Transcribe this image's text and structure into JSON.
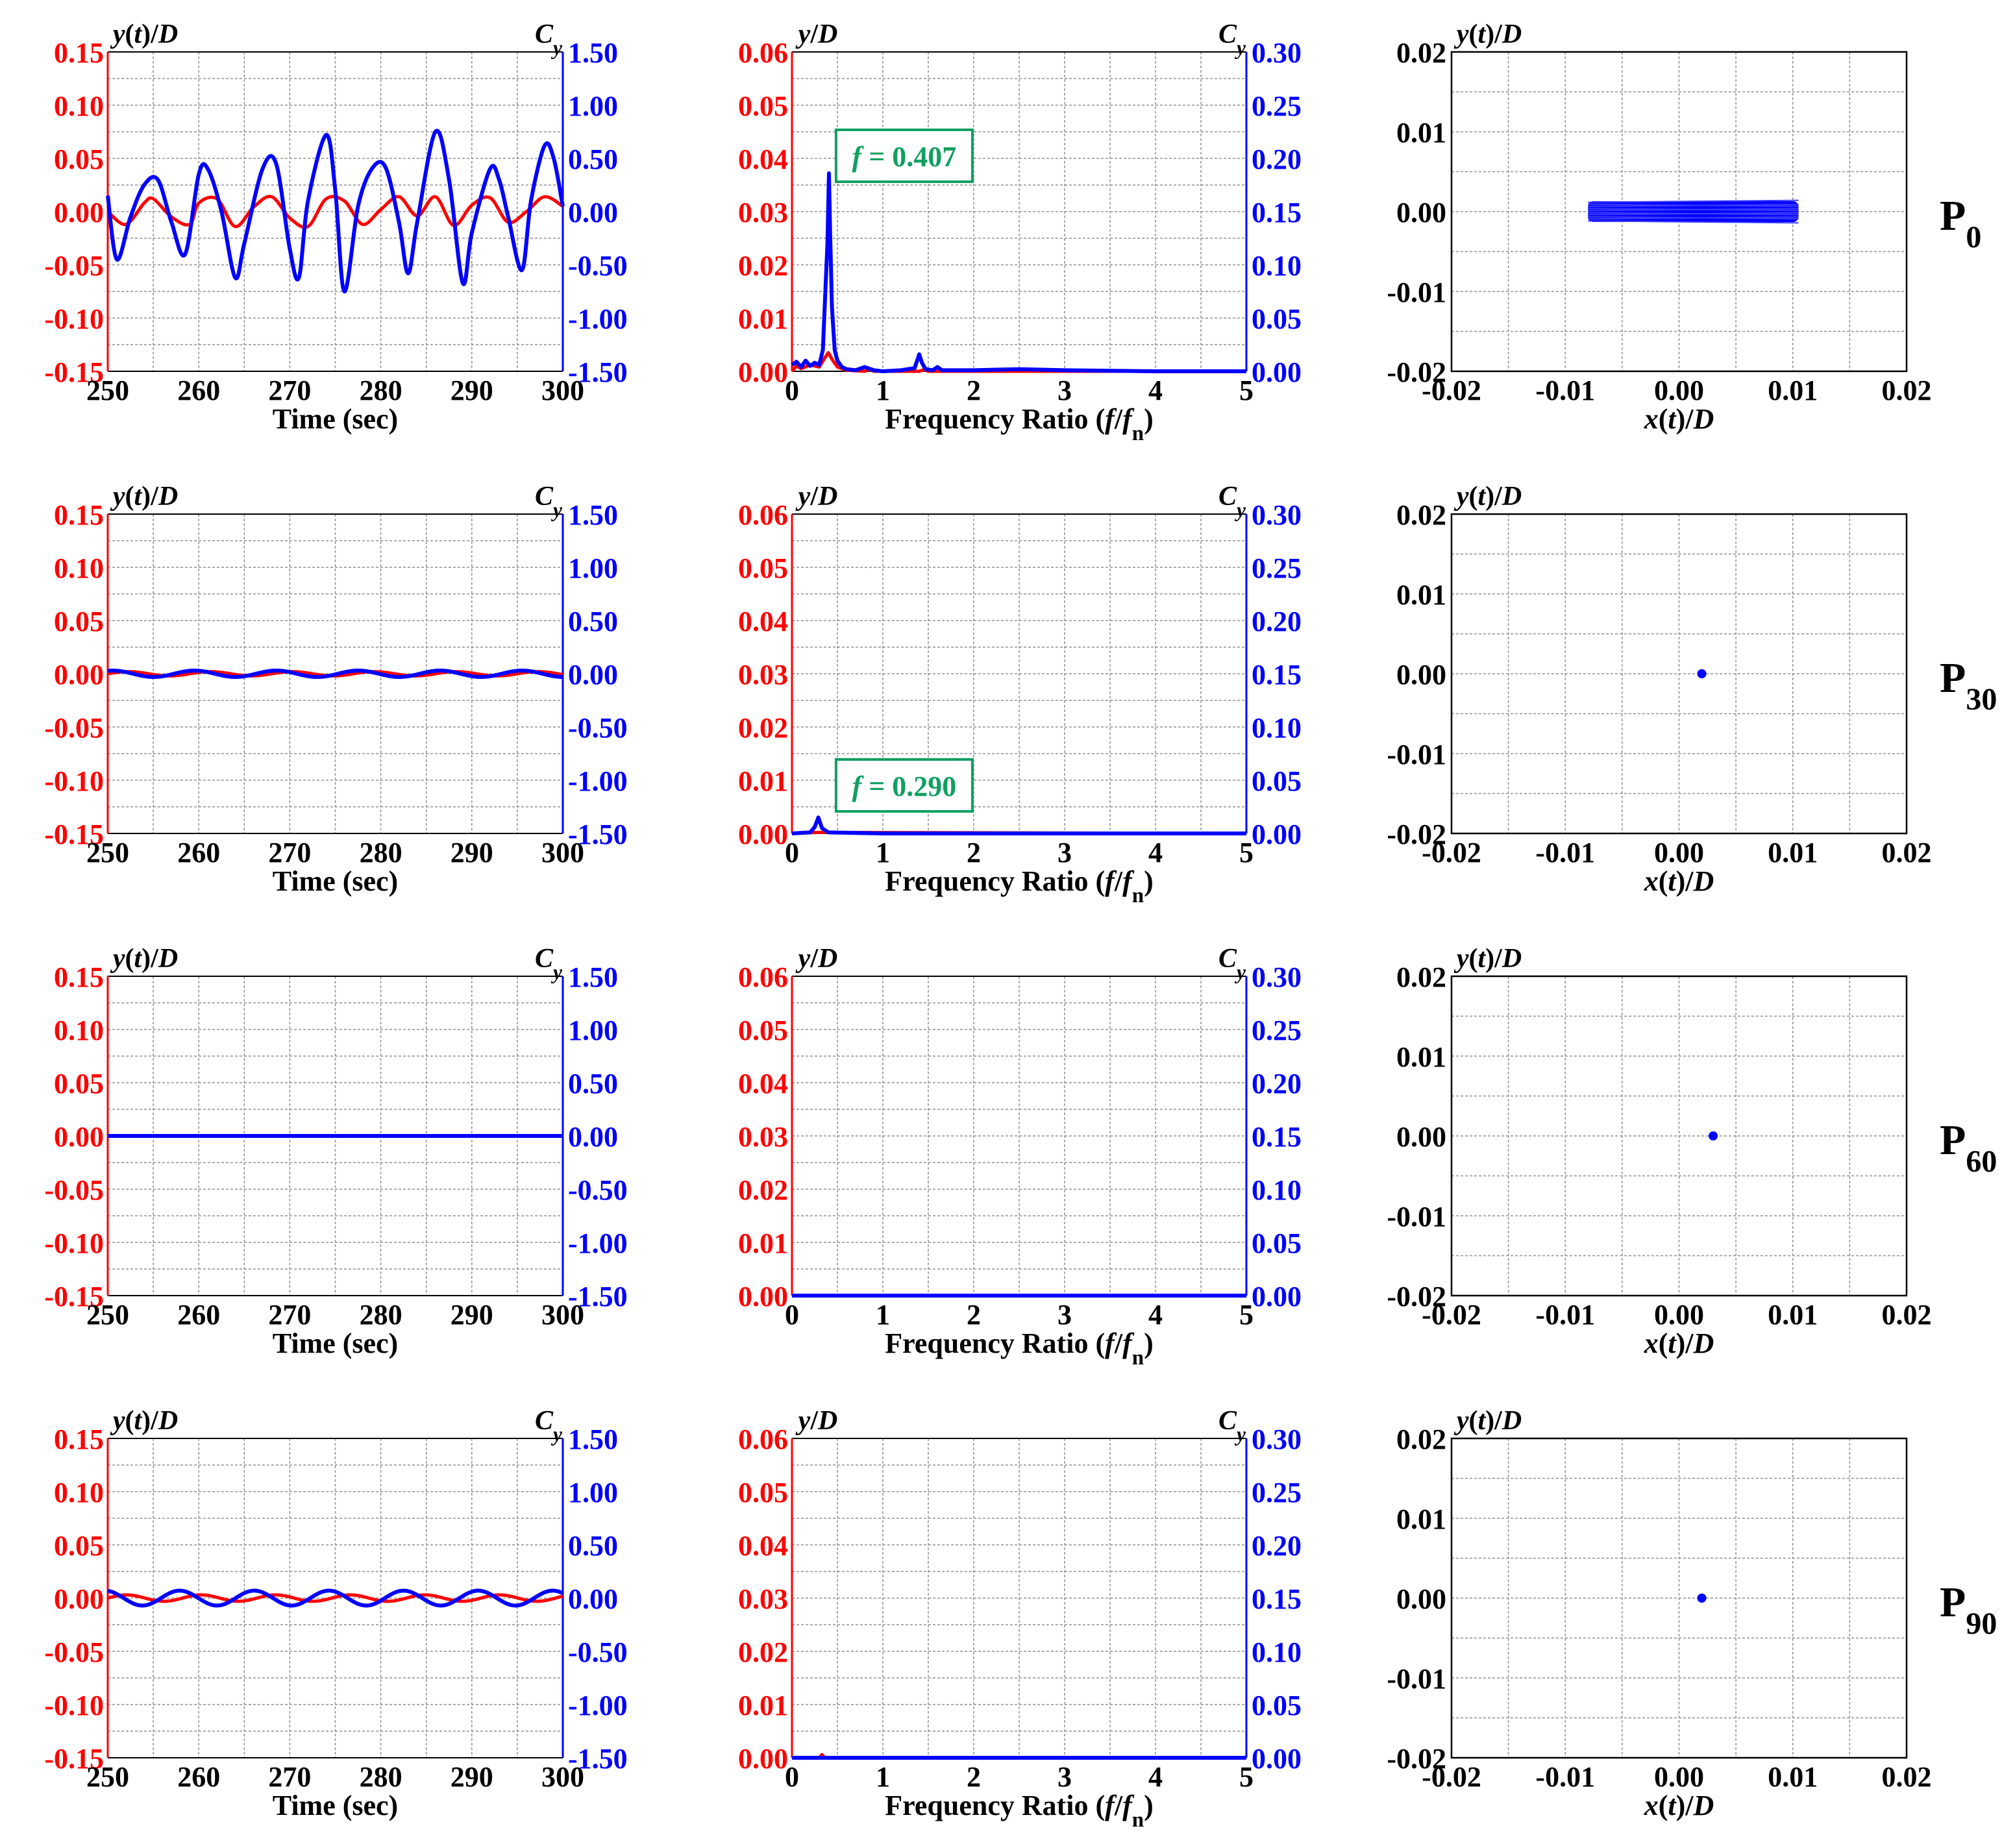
{
  "colors": {
    "left_axis": "#ff0000",
    "right_axis": "#0000ff",
    "grid": "#909090",
    "annotation": "#10a060",
    "frame": "#000000"
  },
  "common": {
    "time_xlabel": "Time (sec)",
    "freq_xlabel": "Frequency Ratio (f/fn)",
    "orbit_xlabel": "x(t)/D",
    "time_left_title": "y(t)/D",
    "time_right_title": "Cy",
    "freq_left_title": "y/D",
    "freq_right_title": "Cy",
    "orbit_ylabel": "y(t)/D",
    "time_xticks": [
      "250",
      "260",
      "270",
      "280",
      "290",
      "300"
    ],
    "time_left_ticks": [
      "0.15",
      "0.10",
      "0.05",
      "0.00",
      "-0.05",
      "-0.10",
      "-0.15"
    ],
    "time_right_ticks": [
      "1.50",
      "1.00",
      "0.50",
      "0.00",
      "-0.50",
      "-1.00",
      "-1.50"
    ],
    "freq_xticks": [
      "0",
      "1",
      "2",
      "3",
      "4",
      "5"
    ],
    "freq_left_ticks": [
      "0.06",
      "0.05",
      "0.04",
      "0.03",
      "0.02",
      "0.01",
      "0.00"
    ],
    "freq_right_ticks": [
      "0.30",
      "0.25",
      "0.20",
      "0.15",
      "0.10",
      "0.05",
      "0.00"
    ],
    "orbit_xticks": [
      "-0.02",
      "-0.01",
      "0.00",
      "0.01",
      "0.02"
    ],
    "orbit_yticks": [
      "0.02",
      "0.01",
      "0.00",
      "-0.01",
      "-0.02"
    ]
  },
  "rows": [
    {
      "label_main": "P",
      "label_sub": "0"
    },
    {
      "label_main": "P",
      "label_sub": "30"
    },
    {
      "label_main": "P",
      "label_sub": "60"
    },
    {
      "label_main": "P",
      "label_sub": "90"
    }
  ],
  "chart_data": [
    {
      "type": "line",
      "row": 0,
      "xlabel": "Time (sec)",
      "xlim": [
        250,
        300
      ],
      "ylim_left": [
        -0.15,
        0.15
      ],
      "ylim_right": [
        -1.5,
        1.5
      ],
      "grid": true,
      "series": [
        {
          "name": "y(t)/D",
          "axis": "left",
          "color": "#ff0000",
          "x": [
            250,
            252,
            254,
            255,
            257,
            259,
            260,
            262,
            264,
            266,
            268,
            270,
            272,
            274,
            276,
            278,
            280,
            282,
            284,
            286,
            288,
            290,
            292,
            294,
            296,
            298,
            300
          ],
          "y": [
            0.0,
            -0.012,
            0.008,
            0.012,
            -0.005,
            -0.012,
            0.008,
            0.012,
            -0.014,
            0.004,
            0.014,
            -0.006,
            -0.014,
            0.012,
            0.01,
            -0.012,
            0.002,
            0.014,
            -0.004,
            0.014,
            -0.013,
            0.006,
            0.013,
            -0.01,
            0.0,
            0.014,
            0.005
          ]
        },
        {
          "name": "Cy",
          "axis": "right",
          "color": "#0000ff",
          "x": [
            250,
            251,
            252.5,
            254,
            255.5,
            257,
            258.5,
            260,
            261,
            262.5,
            264,
            265,
            267,
            268.5,
            270,
            271,
            272,
            274,
            275,
            276,
            277.5,
            279,
            280.5,
            282,
            283,
            284,
            286,
            287.5,
            289,
            290,
            292,
            293,
            294,
            295.5,
            296.5,
            298,
            299,
            300
          ],
          "y": [
            0.15,
            -0.45,
            -0.05,
            0.25,
            0.3,
            -0.1,
            -0.4,
            0.35,
            0.4,
            0.0,
            -0.62,
            -0.3,
            0.4,
            0.45,
            -0.35,
            -0.62,
            0.1,
            0.72,
            0.2,
            -0.75,
            0.05,
            0.4,
            0.42,
            -0.1,
            -0.58,
            -0.1,
            0.75,
            0.3,
            -0.67,
            -0.2,
            0.4,
            0.3,
            -0.05,
            -0.55,
            0.1,
            0.62,
            0.5,
            0.05
          ]
        }
      ]
    },
    {
      "type": "line",
      "row": 0,
      "xlabel": "Frequency Ratio (f/fn)",
      "xlim": [
        0,
        5
      ],
      "ylim_left": [
        0,
        0.06
      ],
      "ylim_right": [
        0,
        0.3
      ],
      "grid": true,
      "annotation": "f = 0.407",
      "series": [
        {
          "name": "y/D",
          "axis": "left",
          "color": "#ff0000",
          "x": [
            0,
            0.05,
            0.1,
            0.2,
            0.3,
            0.35,
            0.4,
            0.45,
            0.5,
            0.6,
            0.8,
            0.85,
            0.9,
            1.0,
            1.2,
            1.4,
            1.45,
            1.5,
            2.0,
            3.0,
            5.0
          ],
          "y": [
            0.0,
            0.001,
            0.0005,
            0.0012,
            0.0008,
            0.0022,
            0.0035,
            0.002,
            0.0008,
            0.0002,
            0.0,
            0.0004,
            0.0,
            0.0,
            0.0,
            0.0,
            0.0003,
            0.0,
            0.0,
            0.0,
            0.0
          ]
        },
        {
          "name": "Cy",
          "axis": "right",
          "color": "#0000ff",
          "x": [
            0,
            0.05,
            0.1,
            0.15,
            0.2,
            0.25,
            0.3,
            0.34,
            0.37,
            0.39,
            0.407,
            0.42,
            0.44,
            0.47,
            0.5,
            0.55,
            0.6,
            0.7,
            0.8,
            0.9,
            1.0,
            1.2,
            1.35,
            1.4,
            1.43,
            1.47,
            1.55,
            1.6,
            1.65,
            2.0,
            2.5,
            3.0,
            4.0,
            5.0
          ],
          "y": [
            0.006,
            0.009,
            0.004,
            0.01,
            0.005,
            0.008,
            0.006,
            0.02,
            0.08,
            0.12,
            0.186,
            0.13,
            0.06,
            0.02,
            0.01,
            0.004,
            0.002,
            0.001,
            0.004,
            0.001,
            0.0,
            0.001,
            0.003,
            0.016,
            0.008,
            0.002,
            0.001,
            0.004,
            0.001,
            0.001,
            0.002,
            0.001,
            0.0,
            0.0
          ]
        }
      ]
    },
    {
      "type": "scatter",
      "row": 0,
      "xlabel": "x(t)/D",
      "ylabel": "y(t)/D",
      "xlim": [
        -0.02,
        0.02
      ],
      "ylim": [
        -0.02,
        0.02
      ],
      "grid": true,
      "orbit": {
        "xmin": -0.008,
        "xmax": 0.0105,
        "ymin": -0.0013,
        "ymax": 0.0013,
        "color": "#0000ff"
      }
    },
    {
      "type": "line",
      "row": 1,
      "xlabel": "Time (sec)",
      "xlim": [
        250,
        300
      ],
      "ylim_left": [
        -0.15,
        0.15
      ],
      "ylim_right": [
        -1.5,
        1.5
      ],
      "grid": true,
      "series": [
        {
          "name": "y(t)/D",
          "axis": "left",
          "color": "#ff0000",
          "sine": {
            "amp": 0.002,
            "period": 9.0,
            "phase": 0.0
          }
        },
        {
          "name": "Cy",
          "axis": "right",
          "color": "#0000ff",
          "sine": {
            "amp": 0.03,
            "period": 9.0,
            "phase": 1.2
          }
        }
      ]
    },
    {
      "type": "line",
      "row": 1,
      "xlabel": "Frequency Ratio (f/fn)",
      "xlim": [
        0,
        5
      ],
      "ylim_left": [
        0,
        0.06
      ],
      "ylim_right": [
        0,
        0.3
      ],
      "grid": true,
      "annotation": "f = 0.290",
      "series": [
        {
          "name": "y/D",
          "axis": "left",
          "color": "#ff0000",
          "x": [
            0,
            0.29,
            5.0
          ],
          "y": [
            0.0,
            0.0002,
            0.0
          ]
        },
        {
          "name": "Cy",
          "axis": "right",
          "color": "#0000ff",
          "x": [
            0,
            0.2,
            0.25,
            0.29,
            0.33,
            0.4,
            1.0,
            2.0,
            5.0
          ],
          "y": [
            0.0,
            0.001,
            0.006,
            0.015,
            0.005,
            0.001,
            0.0,
            0.0,
            0.0
          ]
        }
      ]
    },
    {
      "type": "scatter",
      "row": 1,
      "xlabel": "x(t)/D",
      "ylabel": "y(t)/D",
      "xlim": [
        -0.02,
        0.02
      ],
      "ylim": [
        -0.02,
        0.02
      ],
      "grid": true,
      "point": {
        "x": 0.002,
        "y": 0.0,
        "color": "#0000ff"
      }
    },
    {
      "type": "line",
      "row": 2,
      "xlabel": "Time (sec)",
      "xlim": [
        250,
        300
      ],
      "ylim_left": [
        -0.15,
        0.15
      ],
      "ylim_right": [
        -1.5,
        1.5
      ],
      "grid": true,
      "series": [
        {
          "name": "y(t)/D",
          "axis": "left",
          "color": "#ff0000",
          "x": [
            250,
            300
          ],
          "y": [
            0.0,
            0.0
          ]
        },
        {
          "name": "Cy",
          "axis": "right",
          "color": "#0000ff",
          "x": [
            250,
            300
          ],
          "y": [
            0.0,
            0.0
          ]
        }
      ]
    },
    {
      "type": "line",
      "row": 2,
      "xlabel": "Frequency Ratio (f/fn)",
      "xlim": [
        0,
        5
      ],
      "ylim_left": [
        0,
        0.06
      ],
      "ylim_right": [
        0,
        0.3
      ],
      "grid": true,
      "series": [
        {
          "name": "y/D",
          "axis": "left",
          "color": "#ff0000",
          "x": [
            0,
            5
          ],
          "y": [
            0.0,
            0.0
          ]
        },
        {
          "name": "Cy",
          "axis": "right",
          "color": "#0000ff",
          "x": [
            0,
            5
          ],
          "y": [
            0.0,
            0.0
          ]
        }
      ]
    },
    {
      "type": "scatter",
      "row": 2,
      "xlabel": "x(t)/D",
      "ylabel": "y(t)/D",
      "xlim": [
        -0.02,
        0.02
      ],
      "ylim": [
        -0.02,
        0.02
      ],
      "grid": true,
      "point": {
        "x": 0.003,
        "y": 0.0,
        "color": "#0000ff"
      }
    },
    {
      "type": "line",
      "row": 3,
      "xlabel": "Time (sec)",
      "xlim": [
        250,
        300
      ],
      "ylim_left": [
        -0.15,
        0.15
      ],
      "ylim_right": [
        -1.5,
        1.5
      ],
      "grid": true,
      "series": [
        {
          "name": "y(t)/D",
          "axis": "left",
          "color": "#ff0000",
          "sine": {
            "amp": 0.003,
            "period": 8.2,
            "phase": 0.0
          }
        },
        {
          "name": "Cy",
          "axis": "right",
          "color": "#0000ff",
          "sine": {
            "amp": 0.07,
            "period": 8.2,
            "phase": 1.8
          }
        }
      ]
    },
    {
      "type": "line",
      "row": 3,
      "xlabel": "Frequency Ratio (f/fn)",
      "xlim": [
        0,
        5
      ],
      "ylim_left": [
        0,
        0.06
      ],
      "ylim_right": [
        0,
        0.3
      ],
      "grid": true,
      "series": [
        {
          "name": "y/D",
          "axis": "left",
          "color": "#ff0000",
          "x": [
            0,
            0.3,
            0.33,
            0.36,
            5.0
          ],
          "y": [
            0.0,
            0.0,
            0.0006,
            0.0,
            0.0
          ]
        },
        {
          "name": "Cy",
          "axis": "right",
          "color": "#0000ff",
          "x": [
            0,
            5
          ],
          "y": [
            0.0,
            0.0
          ]
        }
      ]
    },
    {
      "type": "scatter",
      "row": 3,
      "xlabel": "x(t)/D",
      "ylabel": "y(t)/D",
      "xlim": [
        -0.02,
        0.02
      ],
      "ylim": [
        -0.02,
        0.02
      ],
      "grid": true,
      "point": {
        "x": 0.002,
        "y": 0.0,
        "color": "#0000ff"
      }
    }
  ]
}
